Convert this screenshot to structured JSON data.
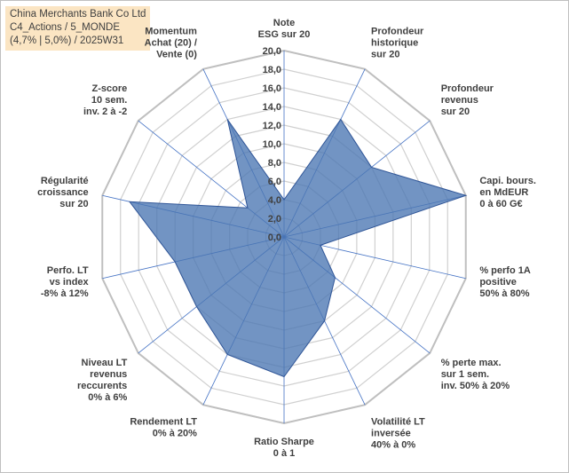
{
  "title_box": {
    "line1": "China Merchants Bank Co Ltd",
    "line2": "C4_Actions / 5_MONDE",
    "line3": "(4,7% | 5,0%) / 2025W31"
  },
  "chart_data": {
    "type": "radar",
    "rmin": 0,
    "rmax": 20,
    "tick_step": 2,
    "tick_labels": [
      "0,0",
      "2,0",
      "4,0",
      "6,0",
      "8,0",
      "10,0",
      "12,0",
      "14,0",
      "16,0",
      "18,0",
      "20,0"
    ],
    "axes": [
      [
        "Note",
        "ESG sur 20"
      ],
      [
        "Profondeur",
        "historique",
        "sur 20"
      ],
      [
        "Profondeur",
        "revenus",
        "sur 20"
      ],
      [
        "Capi. bours.",
        "en MdEUR",
        "0 à 60 G€"
      ],
      [
        "% perfo 1A",
        "positive",
        "50% à 80%"
      ],
      [
        "% perte max.",
        "sur 1 sem.",
        "inv. 50% à 20%"
      ],
      [
        "Volatilité LT",
        "inversée",
        "40% à 0%"
      ],
      [
        "Ratio Sharpe",
        "0 à 1"
      ],
      [
        "Rendement LT",
        "0% à 20%"
      ],
      [
        "Niveau LT",
        "revenus",
        "reccurents",
        "0% à 6%"
      ],
      [
        "Perfo. LT",
        "vs index",
        "-8% à 12%"
      ],
      [
        "Régularité",
        "croissance",
        "sur 20"
      ],
      [
        "Z-score",
        "10 sem.",
        "inv. 2 à -2"
      ],
      [
        "Momentum",
        "Achat (20) /",
        "Vente (0)"
      ]
    ],
    "series": [
      {
        "values": [
          4,
          14,
          12,
          20,
          4,
          7,
          10,
          15,
          14,
          12,
          12,
          17,
          5,
          14
        ],
        "fill": "#4a76b2",
        "stroke": "#2f5597"
      }
    ],
    "grid": true,
    "colors": {
      "grid": "#d0d0d0",
      "spoke": "#4472c4"
    }
  }
}
